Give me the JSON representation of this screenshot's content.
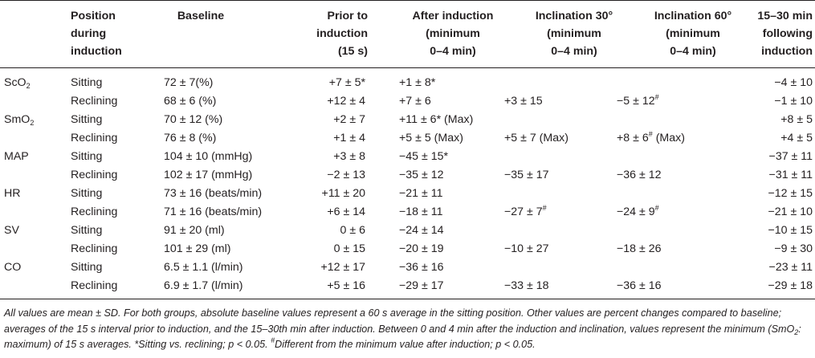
{
  "header": {
    "position": [
      "Position",
      "during",
      "induction"
    ],
    "baseline": [
      "Baseline"
    ],
    "prior": [
      "Prior to",
      "induction",
      "(15 s)"
    ],
    "after": [
      "After induction",
      "(minimum",
      "0–4 min)"
    ],
    "incl30": [
      "Inclination 30°",
      "(minimum",
      "0–4 min)"
    ],
    "incl60": [
      "Inclination 60°",
      "(minimum",
      "0–4 min)"
    ],
    "f1530": [
      "15–30 min",
      "following",
      "induction"
    ]
  },
  "rows": [
    {
      "var_main": "ScO",
      "var_sub": "2",
      "pos": "Sitting",
      "base": "72 ± 7(%)",
      "prior": "+7 ± 5*",
      "after": "+1 ± 8*",
      "i30": "",
      "i60_main": "",
      "i60_sup": "",
      "i60_tail": "",
      "f1530": "−4 ± 10"
    },
    {
      "var_main": "",
      "var_sub": "",
      "pos": "Reclining",
      "base": "68 ± 6 (%)",
      "prior": "+12 ± 4",
      "after": "+7 ± 6",
      "i30": "+3 ± 15",
      "i60_main": "−5 ± 12",
      "i60_sup": "#",
      "i60_tail": "",
      "f1530": "−1 ± 10"
    },
    {
      "var_main": "SmO",
      "var_sub": "2",
      "pos": "Sitting",
      "base": "70 ± 12 (%)",
      "prior": "+2 ± 7",
      "after": "+11 ± 6* (Max)",
      "i30": "",
      "i60_main": "",
      "i60_sup": "",
      "i60_tail": "",
      "f1530": "+8 ± 5"
    },
    {
      "var_main": "",
      "var_sub": "",
      "pos": "Reclining",
      "base": "76 ± 8 (%)",
      "prior": "+1 ± 4",
      "after": "+5 ± 5 (Max)",
      "i30": "+5 ± 7 (Max)",
      "i60_main": "+8 ± 6",
      "i60_sup": "#",
      "i60_tail": " (Max)",
      "f1530": "+4 ± 5"
    },
    {
      "var_main": "MAP",
      "var_sub": "",
      "pos": "Sitting",
      "base": "104 ± 10 (mmHg)",
      "prior": "+3 ± 8",
      "after": "−45 ± 15*",
      "i30": "",
      "i60_main": "",
      "i60_sup": "",
      "i60_tail": "",
      "f1530": "−37 ± 11"
    },
    {
      "var_main": "",
      "var_sub": "",
      "pos": "Reclining",
      "base": "102 ± 17 (mmHg)",
      "prior": "−2 ± 13",
      "after": "−35 ± 12",
      "i30": "−35 ± 17",
      "i60_main": "−36 ± 12",
      "i60_sup": "",
      "i60_tail": "",
      "f1530": "−31 ± 11"
    },
    {
      "var_main": "HR",
      "var_sub": "",
      "pos": "Sitting",
      "base": "73 ± 16 (beats/min)",
      "prior": "+11 ± 20",
      "after": "−21 ± 11",
      "i30": "",
      "i60_main": "",
      "i60_sup": "",
      "i60_tail": "",
      "f1530": "−12 ± 15"
    },
    {
      "var_main": "",
      "var_sub": "",
      "pos": "Reclining",
      "base": "71 ± 16 (beats/min)",
      "prior": "+6 ± 14",
      "after": "−18 ± 11",
      "i30": "−27 ± 7#",
      "i60_main": "−24 ± 9",
      "i60_sup": "#",
      "i60_tail": "",
      "f1530": "−21 ± 10"
    },
    {
      "var_main": "SV",
      "var_sub": "",
      "pos": "Sitting",
      "base": "91 ± 20 (ml)",
      "prior": "0 ± 6",
      "after": "−24 ± 14",
      "i30": "",
      "i60_main": "",
      "i60_sup": "",
      "i60_tail": "",
      "f1530": "−10 ± 15"
    },
    {
      "var_main": "",
      "var_sub": "",
      "pos": "Reclining",
      "base": "101 ± 29 (ml)",
      "prior": "0 ± 15",
      "after": "−20 ± 19",
      "i30": "−10 ± 27",
      "i60_main": "−18 ± 26",
      "i60_sup": "",
      "i60_tail": "",
      "f1530": "−9 ± 30"
    },
    {
      "var_main": "CO",
      "var_sub": "",
      "pos": "Sitting",
      "base": "6.5 ± 1.1 (l/min)",
      "prior": "+12 ± 17",
      "after": "−36 ± 16",
      "i30": "",
      "i60_main": "",
      "i60_sup": "",
      "i60_tail": "",
      "f1530": "−23 ± 11"
    },
    {
      "var_main": "",
      "var_sub": "",
      "pos": "Reclining",
      "base": "6.9 ± 1.7 (l/min)",
      "prior": "+5 ± 16",
      "after": "−29 ± 17",
      "i30": "−33 ± 18",
      "i60_main": "−36 ± 16",
      "i60_sup": "",
      "i60_tail": "",
      "f1530": "−29 ± 18"
    }
  ],
  "footnote": {
    "p1": "All values are mean ± SD. For both groups, absolute baseline values represent a 60 s average in the sitting position. Other values are percent changes compared to baseline; averages of the 15 s interval prior to induction, and the 15–30th min after induction. Between 0 and 4 min after the induction and inclination, values represent the minimum (SmO",
    "sub": "2",
    "p2": ": maximum) of 15 s averages. *Sitting vs. reclining; p < 0.05. ",
    "sup": "#",
    "p3": "Different from the minimum value after induction; p < 0.05."
  }
}
